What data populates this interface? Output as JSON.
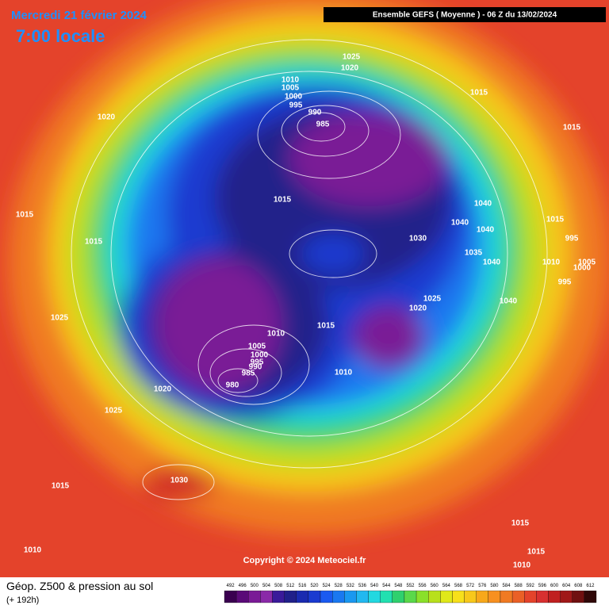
{
  "header": {
    "date": "Mercredi 21 février 2024",
    "time": "7:00 locale",
    "run": "Ensemble GEFS  ( Moyenne )  -  06 Z du 13/02/2024"
  },
  "isobar_labels": [
    1025,
    1020,
    1010,
    1005,
    1000,
    995,
    990,
    985,
    1015,
    1015,
    1020,
    1015,
    1015,
    1040,
    1015,
    1040,
    1040,
    995,
    1030,
    1015,
    1035,
    1040,
    1010,
    1005,
    1000,
    995,
    1025,
    1040,
    1020,
    1025,
    1015,
    1010,
    1005,
    1000,
    995,
    990,
    985,
    1010,
    980,
    1020,
    1025,
    1030,
    1015,
    1015,
    1015,
    1010,
    1010
  ],
  "copyright": "Copyright © 2024 Meteociel.fr",
  "legend": {
    "title": "Géop. Z500 & pression au sol",
    "subtitle": "(+ 192h)",
    "ticks": [
      492,
      496,
      500,
      504,
      508,
      512,
      516,
      520,
      524,
      528,
      532,
      536,
      540,
      544,
      548,
      552,
      556,
      560,
      564,
      568,
      572,
      576,
      580,
      584,
      588,
      592,
      596,
      600,
      604,
      608,
      612
    ],
    "colors": [
      "#3a0050",
      "#5a0a78",
      "#7a1a96",
      "#8a2aa8",
      "#3a1a9a",
      "#20208a",
      "#1a2ab0",
      "#1a3ad0",
      "#1a5af0",
      "#1a78f0",
      "#1a98f0",
      "#22b8f0",
      "#22d8e0",
      "#22e0b0",
      "#2fd06e",
      "#5ad84a",
      "#8ae02a",
      "#b8e01c",
      "#e0e81a",
      "#f7e01b",
      "#f7c81b",
      "#f7a81b",
      "#f79020",
      "#f07a22",
      "#ea6026",
      "#e4432b",
      "#d83030",
      "#c02020",
      "#a01818",
      "#701010",
      "#300808"
    ]
  }
}
